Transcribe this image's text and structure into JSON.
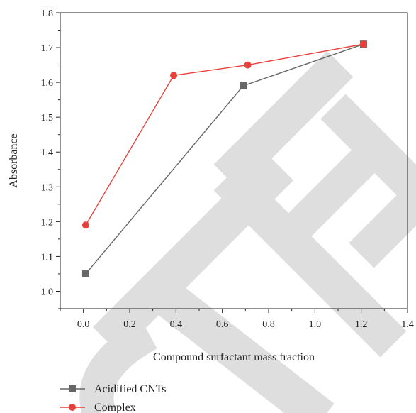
{
  "chart_data": {
    "type": "line",
    "title": "",
    "xlabel": "Compound surfactant mass fraction",
    "ylabel": "Absorbance",
    "xlim": [
      -0.1,
      1.4
    ],
    "ylim": [
      0.95,
      1.8
    ],
    "x_ticks": [
      "0.0",
      "0.2",
      "0.4",
      "0.6",
      "0.8",
      "1.0",
      "1.2",
      "1.4"
    ],
    "y_ticks": [
      "1.0",
      "1.1",
      "1.2",
      "1.3",
      "1.4",
      "1.5",
      "1.6",
      "1.7",
      "1.8"
    ],
    "grid": false,
    "legend_position": "bottom-left, below plot",
    "series": [
      {
        "name": "Acidified CNTs",
        "marker": "square",
        "color": "#666666",
        "x": [
          0.01,
          0.69,
          1.21
        ],
        "y": [
          1.05,
          1.59,
          1.71
        ]
      },
      {
        "name": "Complex",
        "marker": "circle",
        "color": "#e8413c",
        "x": [
          0.01,
          0.39,
          0.71,
          1.21
        ],
        "y": [
          1.19,
          1.62,
          1.65,
          1.71
        ]
      }
    ]
  },
  "colors": {
    "watermark": "#d9d9d9",
    "axis": "#222222"
  }
}
